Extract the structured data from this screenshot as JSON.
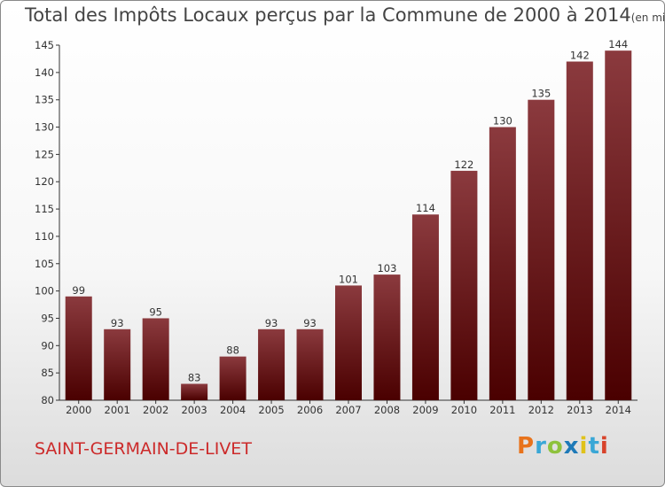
{
  "header": {
    "title": "Total des Impôts Locaux perçus par la Commune de 2000 à 2014",
    "unit": "(en milliers d'€)"
  },
  "footer": {
    "commune": "SAINT-GERMAIN-DE-LIVET",
    "logo": {
      "letters": [
        "P",
        "r",
        "o",
        "x",
        "i",
        "t",
        "i"
      ]
    }
  },
  "colors": {
    "bar_top": "#8b3a3e",
    "bar_bottom": "#4a0000",
    "commune_text": "#cc2a2a"
  },
  "chart_data": {
    "type": "bar",
    "categories": [
      "2000",
      "2001",
      "2002",
      "2003",
      "2004",
      "2005",
      "2006",
      "2007",
      "2008",
      "2009",
      "2010",
      "2011",
      "2012",
      "2013",
      "2014"
    ],
    "values": [
      99,
      93,
      95,
      83,
      88,
      93,
      93,
      101,
      103,
      114,
      122,
      130,
      135,
      142,
      144
    ],
    "title": "Total des Impôts Locaux perçus par la Commune de 2000 à 2014",
    "xlabel": "",
    "ylabel": "",
    "ylim": [
      80,
      145
    ],
    "yticks": [
      80,
      85,
      90,
      95,
      100,
      105,
      110,
      115,
      120,
      125,
      130,
      135,
      140,
      145
    ],
    "grid": false,
    "legend": "none"
  }
}
